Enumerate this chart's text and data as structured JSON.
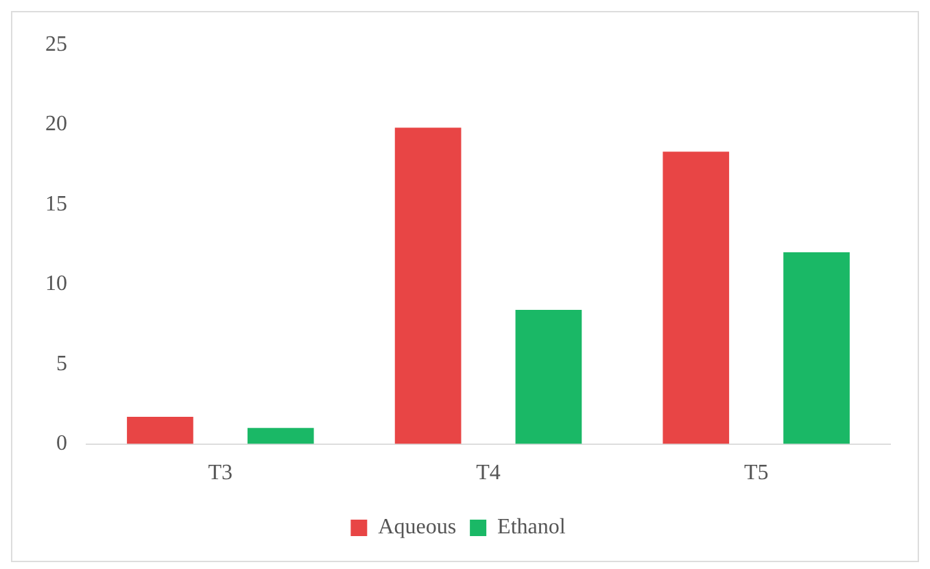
{
  "chart_data": {
    "type": "bar",
    "categories": [
      "T3",
      "T4",
      "T5"
    ],
    "series": [
      {
        "name": "Aqueous",
        "color": "#e84545",
        "values": [
          1.7,
          19.8,
          18.3
        ]
      },
      {
        "name": "Ethanol",
        "color": "#1ab866",
        "values": [
          1.0,
          8.4,
          12.0
        ]
      }
    ],
    "ylim": [
      0,
      25
    ],
    "yticks": [
      0,
      5,
      10,
      15,
      20,
      25
    ],
    "grid": false,
    "legend": "bottom"
  }
}
